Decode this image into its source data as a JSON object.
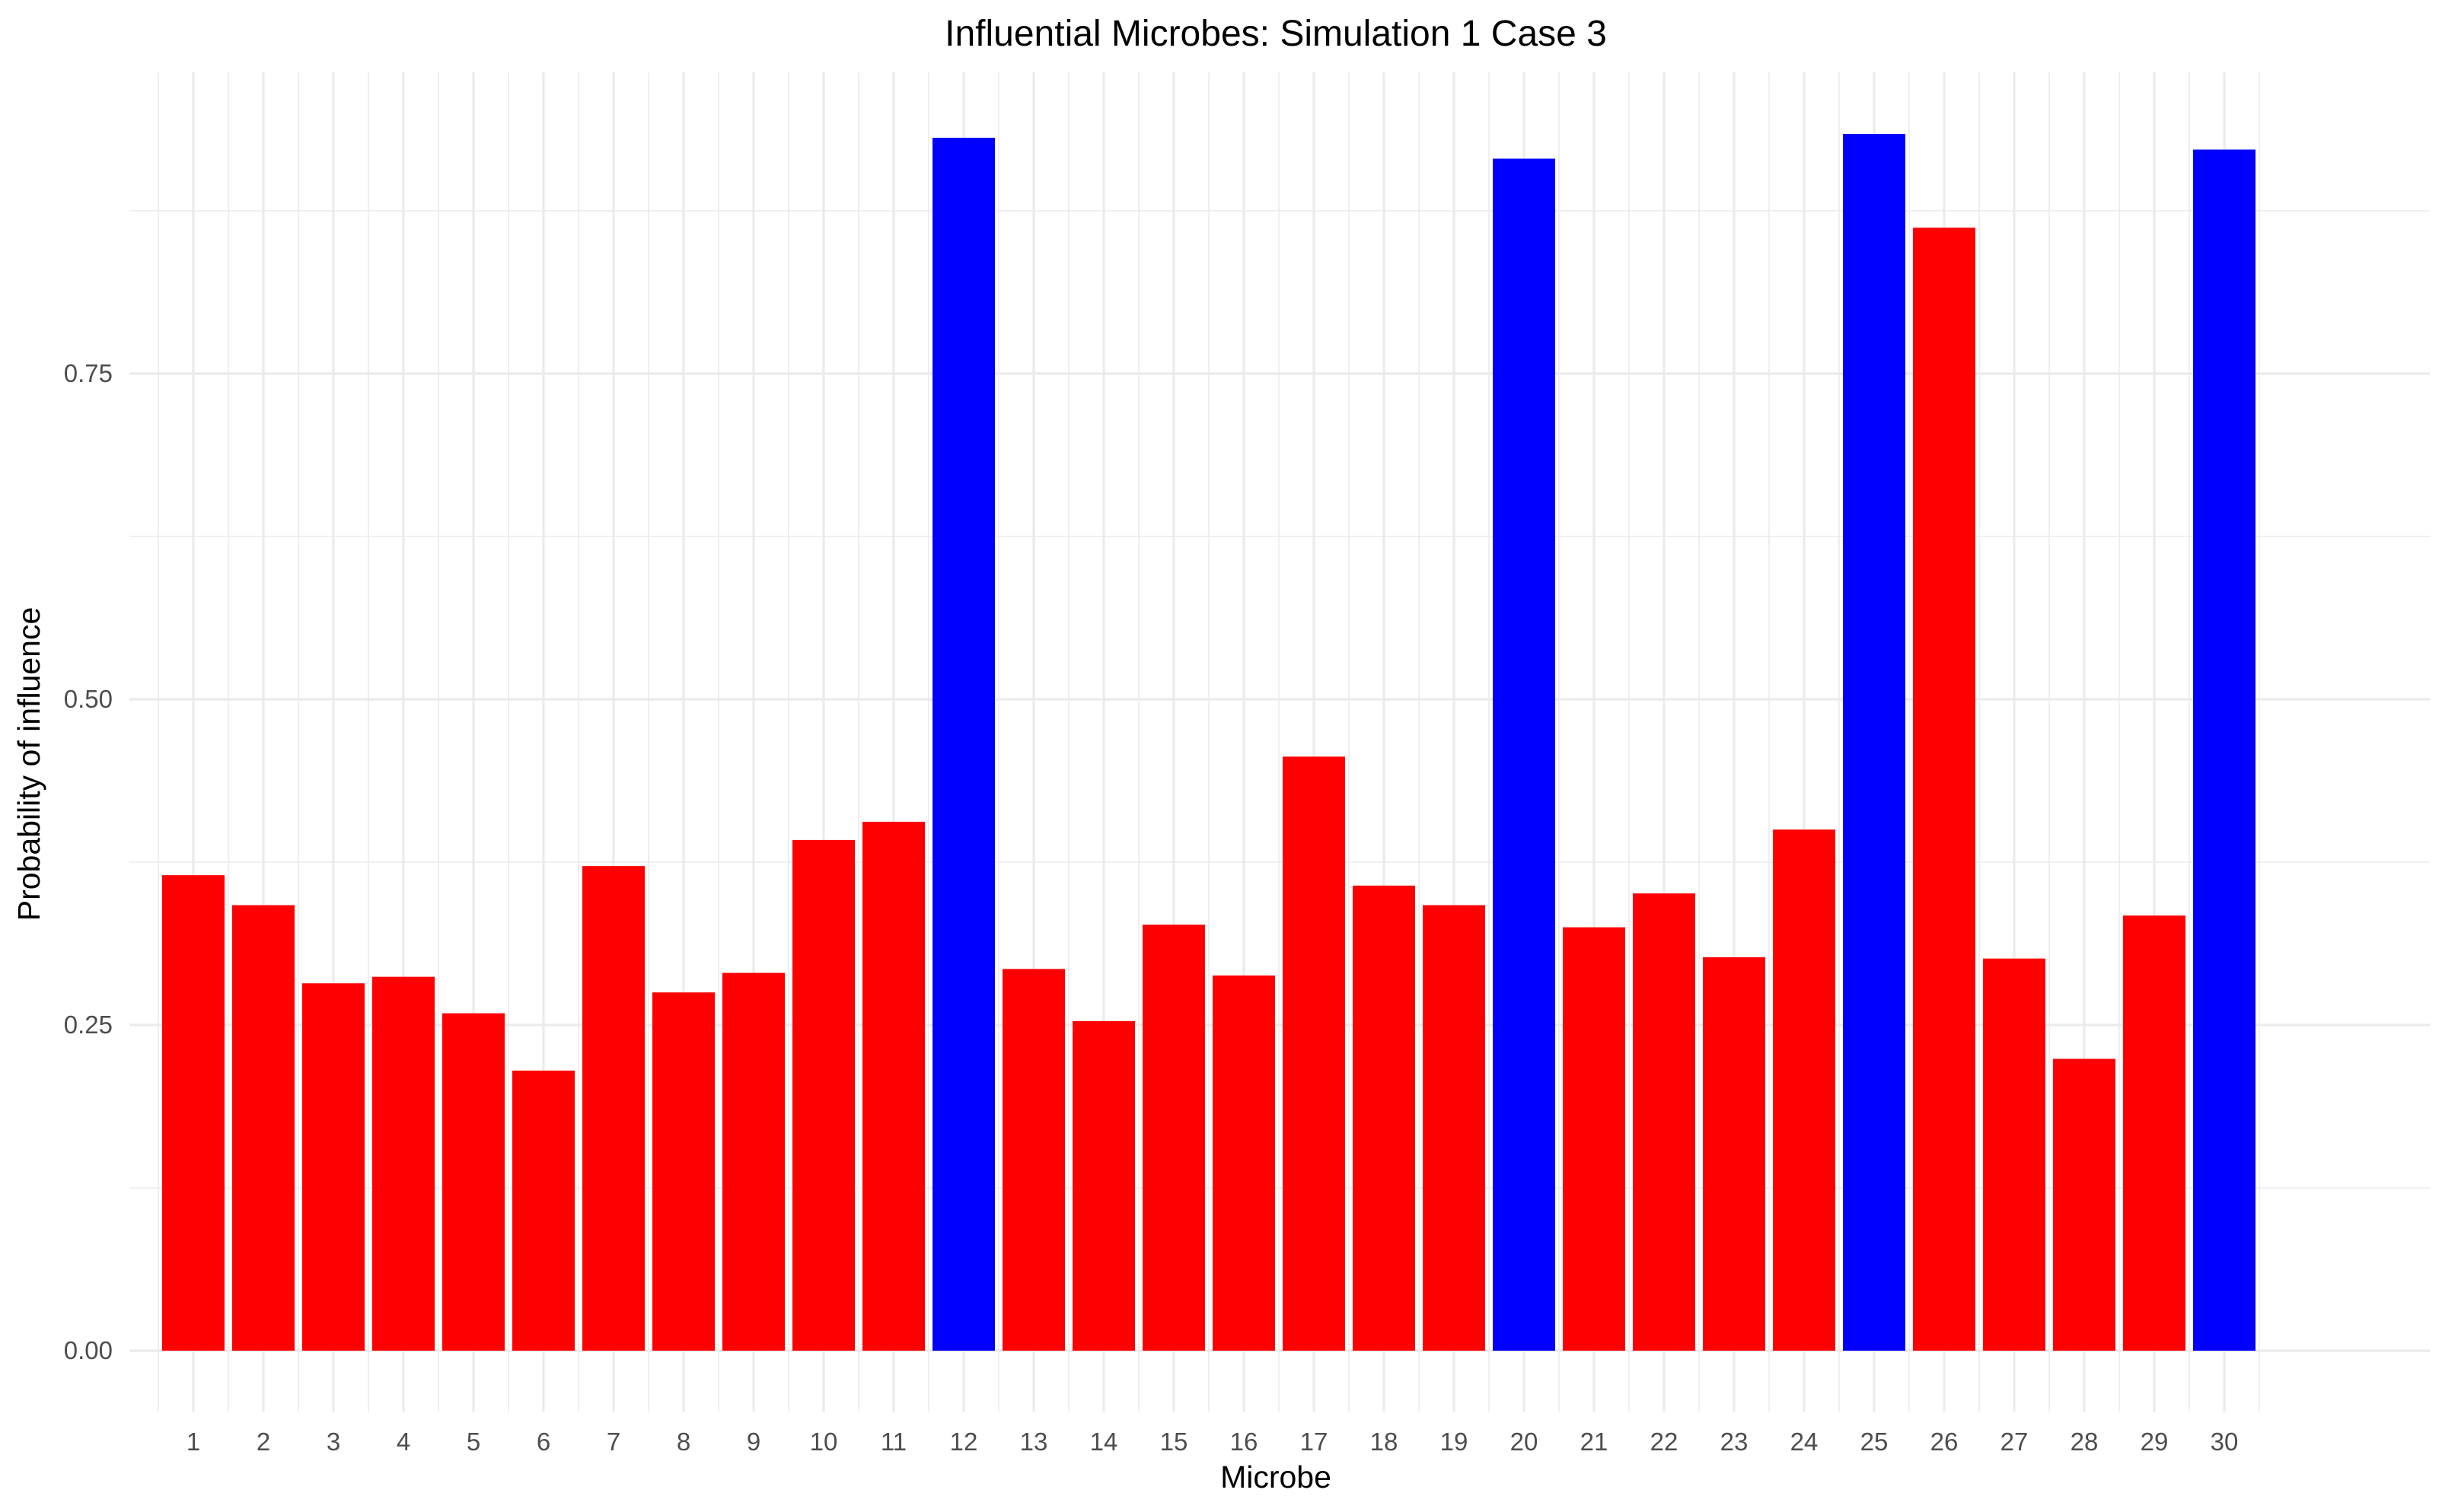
{
  "chart_data": {
    "type": "bar",
    "title": "Influential Microbes: Simulation 1 Case 3",
    "xlabel": "Microbe",
    "ylabel": "Probability of influence",
    "categories": [
      "1",
      "2",
      "3",
      "4",
      "5",
      "6",
      "7",
      "8",
      "9",
      "10",
      "11",
      "12",
      "13",
      "14",
      "15",
      "16",
      "17",
      "18",
      "19",
      "20",
      "21",
      "22",
      "23",
      "24",
      "25",
      "26",
      "27",
      "28",
      "29",
      "30"
    ],
    "values": [
      0.365,
      0.342,
      0.282,
      0.287,
      0.259,
      0.215,
      0.372,
      0.275,
      0.29,
      0.392,
      0.406,
      0.931,
      0.293,
      0.253,
      0.327,
      0.288,
      0.456,
      0.357,
      0.342,
      0.915,
      0.325,
      0.351,
      0.302,
      0.4,
      0.934,
      0.862,
      0.301,
      0.224,
      0.334,
      0.922
    ],
    "highlighted": [
      false,
      false,
      false,
      false,
      false,
      false,
      false,
      false,
      false,
      false,
      false,
      true,
      false,
      false,
      false,
      false,
      false,
      false,
      false,
      true,
      false,
      false,
      false,
      false,
      true,
      false,
      false,
      false,
      false,
      true
    ],
    "colors": {
      "default": "#ff0000",
      "highlight": "#0000ff"
    },
    "yticks": [
      "0.00",
      "0.25",
      "0.50",
      "0.75"
    ],
    "ylim": [
      -0.045,
      0.98
    ],
    "grid": true,
    "legend": "none"
  }
}
